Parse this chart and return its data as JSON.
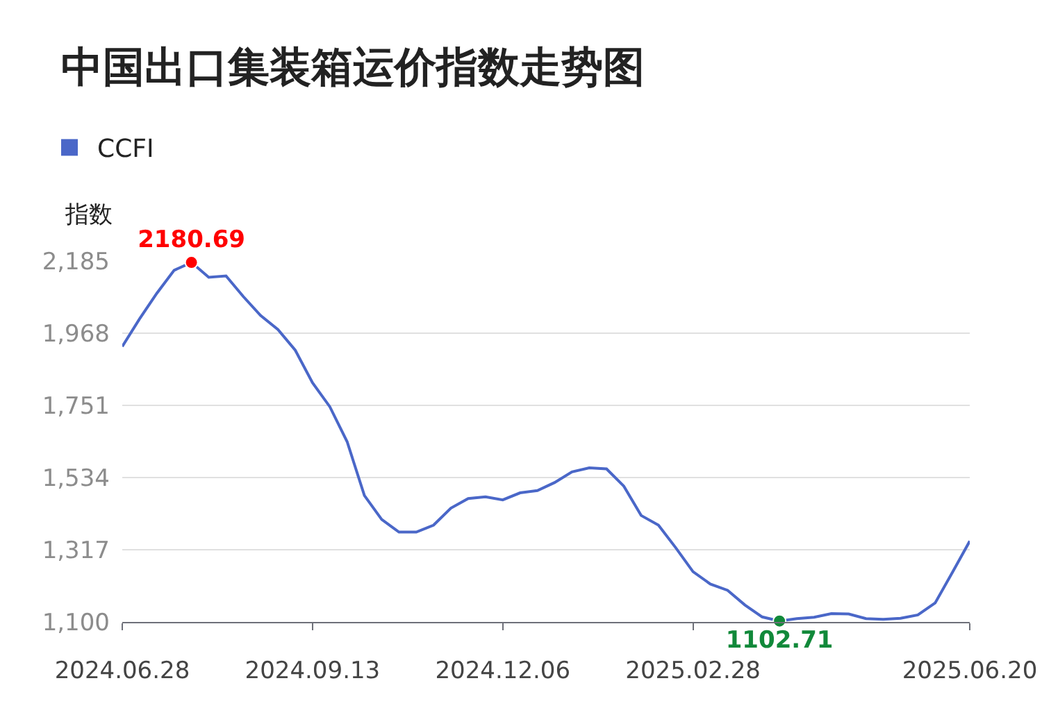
{
  "chart_data": {
    "type": "line",
    "title": "中国出口集装箱运价指数走势图",
    "ylabel": "指数",
    "categories": [
      "2024.06.28",
      null,
      null,
      null,
      null,
      null,
      null,
      null,
      null,
      null,
      null,
      "2024.09.13",
      null,
      null,
      null,
      null,
      null,
      null,
      null,
      null,
      null,
      null,
      "2024.12.06",
      null,
      null,
      null,
      null,
      null,
      null,
      null,
      null,
      null,
      null,
      "2025.02.28",
      null,
      null,
      null,
      null,
      null,
      null,
      null,
      null,
      null,
      null,
      null,
      null,
      null,
      null,
      null,
      "2025.06.20"
    ],
    "series": [
      {
        "name": "CCFI",
        "color": "#4a67c8",
        "values": [
          1928,
          2011,
          2088,
          2157,
          2180.69,
          2136,
          2140,
          2078,
          2021,
          1979,
          1917,
          1819,
          1747,
          1642,
          1480,
          1408,
          1370,
          1370,
          1391,
          1442,
          1471,
          1476,
          1467,
          1488,
          1495,
          1519,
          1551,
          1563,
          1560,
          1508,
          1420,
          1391,
          1323,
          1251,
          1214,
          1195,
          1151,
          1115,
          1102.71,
          1110,
          1114,
          1125,
          1124,
          1110,
          1108,
          1111,
          1121,
          1157,
          1249,
          1343
        ],
        "value_labels": [
          null,
          null,
          null,
          null,
          "2180.69",
          null,
          null,
          null,
          null,
          null,
          null,
          null,
          null,
          null,
          null,
          null,
          null,
          null,
          null,
          null,
          null,
          null,
          null,
          null,
          null,
          null,
          null,
          null,
          null,
          null,
          null,
          null,
          null,
          null,
          null,
          null,
          null,
          null,
          "1102.71",
          null,
          null,
          null,
          null,
          null,
          null,
          null,
          null,
          null,
          null,
          null
        ],
        "colors": [
          null,
          null,
          null,
          null,
          "#ff0000",
          null,
          null,
          null,
          null,
          null,
          null,
          null,
          null,
          null,
          null,
          null,
          null,
          null,
          null,
          null,
          null,
          null,
          null,
          null,
          null,
          null,
          null,
          null,
          null,
          null,
          null,
          null,
          null,
          null,
          null,
          null,
          null,
          null,
          "#11893a",
          null,
          null,
          null,
          null,
          null,
          null,
          null,
          null,
          null,
          null,
          null
        ]
      }
    ],
    "ylim": [
      1100,
      2185
    ],
    "yticks": [
      {
        "value": 1100,
        "label": "1,100"
      },
      {
        "value": 1317,
        "label": "1,317"
      },
      {
        "value": 1534,
        "label": "1,534"
      },
      {
        "value": 1751,
        "label": "1,751"
      },
      {
        "value": 1968,
        "label": "1,968"
      },
      {
        "value": 2185,
        "label": "2,185"
      }
    ],
    "grid": "y",
    "legend": "top left"
  }
}
